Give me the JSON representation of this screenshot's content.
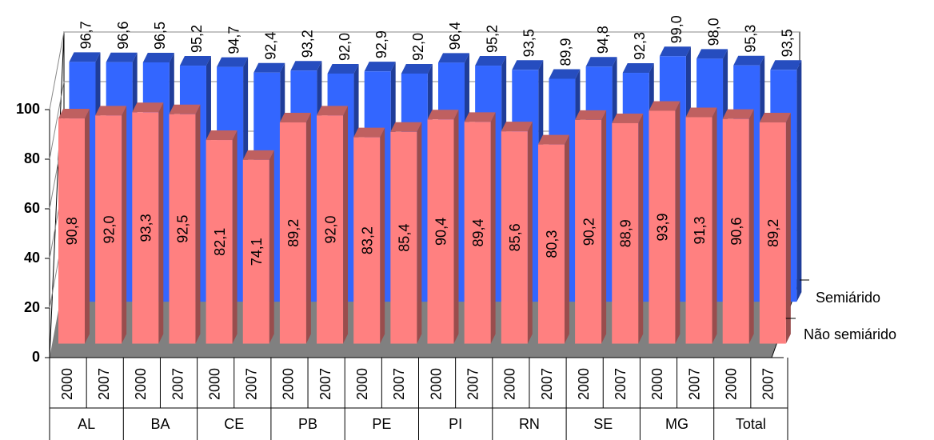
{
  "chart_data": {
    "type": "bar3d",
    "categories": [
      "2000",
      "2007",
      "2000",
      "2007",
      "2000",
      "2007",
      "2000",
      "2007",
      "2000",
      "2007",
      "2000",
      "2007",
      "2000",
      "2007",
      "2000",
      "2007",
      "2000",
      "2007",
      "2000",
      "2007"
    ],
    "groups": [
      "AL",
      "BA",
      "CE",
      "PB",
      "PE",
      "PI",
      "RN",
      "SE",
      "MG",
      "Total"
    ],
    "series": [
      {
        "name": "Semiárido",
        "color": "#3366ff",
        "values": [
          96.7,
          96.6,
          96.5,
          95.2,
          94.7,
          92.4,
          93.2,
          92.0,
          92.9,
          92.0,
          96.4,
          95.2,
          93.5,
          89.9,
          94.8,
          92.3,
          99.0,
          98.0,
          95.3,
          93.5
        ],
        "value_labels": [
          "96,7",
          "96,6",
          "96,5",
          "95,2",
          "94,7",
          "92,4",
          "93,2",
          "92,0",
          "92,9",
          "92,0",
          "96,4",
          "95,2",
          "93,5",
          "89,9",
          "94,8",
          "92,3",
          "99,0",
          "98,0",
          "95,3",
          "93,5"
        ]
      },
      {
        "name": "Não semiárido",
        "color": "#ff8080",
        "values": [
          90.8,
          92.0,
          93.3,
          92.5,
          82.1,
          74.1,
          89.2,
          92.0,
          83.2,
          85.4,
          90.4,
          89.4,
          85.6,
          80.3,
          90.2,
          88.9,
          93.9,
          91.3,
          90.6,
          89.2
        ],
        "value_labels": [
          "90,8",
          "92,0",
          "93,3",
          "92,5",
          "82,1",
          "74,1",
          "89,2",
          "92,0",
          "83,2",
          "85,4",
          "90,4",
          "89,4",
          "85,6",
          "80,3",
          "90,2",
          "88,9",
          "93,9",
          "91,3",
          "90,6",
          "89,2"
        ]
      }
    ],
    "ylim": [
      0,
      100
    ],
    "yticks": [
      0,
      20,
      40,
      60,
      80,
      100
    ],
    "grid": true,
    "legend": "right"
  }
}
